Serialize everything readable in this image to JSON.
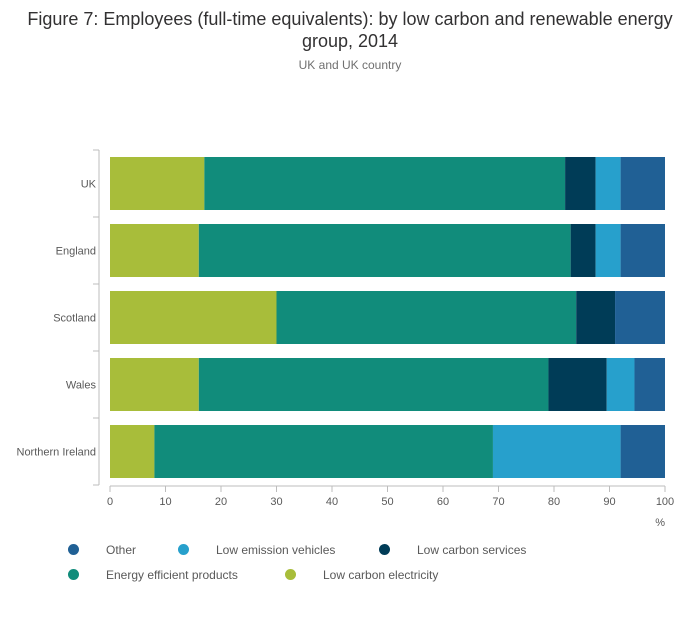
{
  "chart_data": {
    "type": "bar",
    "orientation": "horizontal",
    "stacked": true,
    "title": "Figure 7: Employees (full-time equivalents): by low carbon and renewable energy group, 2014",
    "subtitle": "UK and UK country",
    "xlabel": "%",
    "xlim": [
      0,
      100
    ],
    "xticks": [
      0,
      10,
      20,
      30,
      40,
      50,
      60,
      70,
      80,
      90,
      100
    ],
    "categories": [
      "UK",
      "England",
      "Scotland",
      "Wales",
      "Northern Ireland"
    ],
    "series": [
      {
        "name": "Low carbon electricity",
        "color": "#a8bd3a",
        "values": [
          17,
          16,
          30,
          16,
          8
        ]
      },
      {
        "name": "Energy efficient products",
        "color": "#118c7b",
        "values": [
          65,
          67,
          54,
          63,
          61
        ]
      },
      {
        "name": "Low carbon services",
        "color": "#003c57",
        "values": [
          5.5,
          4.5,
          7,
          10.5,
          0
        ]
      },
      {
        "name": "Low emission vehicles",
        "color": "#27a0cc",
        "values": [
          4.5,
          4.5,
          0,
          5,
          23
        ]
      },
      {
        "name": "Other",
        "color": "#206095",
        "values": [
          8,
          8,
          9,
          5.5,
          8
        ]
      }
    ],
    "legend": [
      {
        "name": "Other",
        "color": "#206095"
      },
      {
        "name": "Low emission vehicles",
        "color": "#27a0cc"
      },
      {
        "name": "Low carbon services",
        "color": "#003c57"
      },
      {
        "name": "Energy efficient products",
        "color": "#118c7b"
      },
      {
        "name": "Low carbon electricity",
        "color": "#a8bd3a"
      }
    ]
  }
}
